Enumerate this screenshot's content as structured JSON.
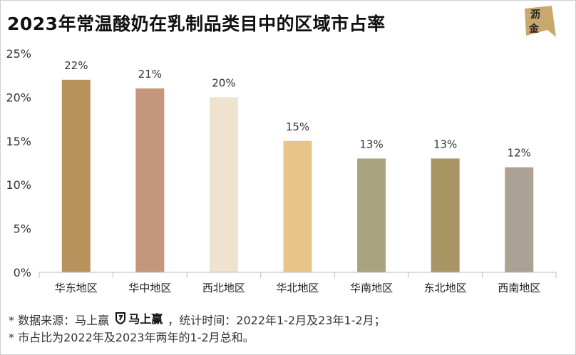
{
  "title": "2023年常温酸奶在乳制品类目中的区域市占率",
  "logo": {
    "line1": "沥",
    "line2": "金"
  },
  "footnote": {
    "line1_prefix": "* 数据来源：马上赢",
    "brand_name": "马上赢",
    "line1_suffix": "，统计时间：2022年1-2月及23年1-2月；",
    "line2": "* 市占比为2022年及2023年两年的1-2月总和。"
  },
  "chart_data": {
    "type": "bar",
    "title": "2023年常温酸奶在乳制品类目中的区域市占率",
    "xlabel": "",
    "ylabel": "",
    "ylim": [
      0,
      25
    ],
    "yticks": [
      "0%",
      "5%",
      "10%",
      "15%",
      "20%",
      "25%"
    ],
    "grid": false,
    "categories": [
      "华东地区",
      "华中地区",
      "西北地区",
      "华北地区",
      "华南地区",
      "东北地区",
      "西南地区"
    ],
    "values": [
      22,
      21,
      20,
      15,
      13,
      13,
      12
    ],
    "data_labels": [
      "22%",
      "21%",
      "20%",
      "15%",
      "13%",
      "13%",
      "12%"
    ],
    "colors": [
      "#b8925c",
      "#c4967b",
      "#efe3cf",
      "#e8c48a",
      "#a9a37f",
      "#a89563",
      "#aca195"
    ]
  }
}
